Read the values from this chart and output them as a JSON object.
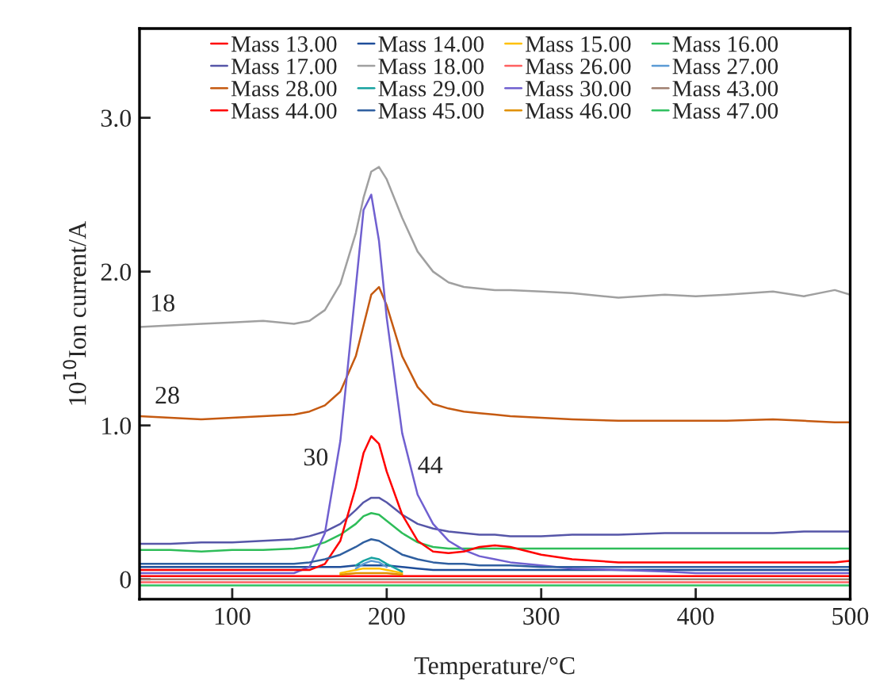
{
  "chart_data": {
    "type": "line",
    "xlabel": "Temperature/°C",
    "ylabel": "10$^{10}$Ion current/A",
    "xlim": [
      40,
      500
    ],
    "ylim": [
      -0.13,
      3.58
    ],
    "xticks": [
      100,
      200,
      300,
      400,
      500
    ],
    "yticks": [
      0,
      {
        "value": 1,
        "label": "1.0"
      },
      {
        "value": 2,
        "label": "2.0"
      },
      {
        "value": 3,
        "label": "3.0"
      }
    ],
    "grid": false,
    "legend": "top",
    "marker": "none",
    "line_style": "solid",
    "annotations": [
      {
        "text": "18",
        "x": 55,
        "y": 1.65
      },
      {
        "text": "28",
        "x": 58,
        "y": 1.05
      },
      {
        "text": "30",
        "x": 168,
        "y": 0.78
      },
      {
        "text": "44",
        "x": 200,
        "y": 0.7
      }
    ],
    "x": [
      40,
      60,
      80,
      100,
      120,
      140,
      150,
      160,
      170,
      180,
      185,
      190,
      195,
      200,
      210,
      220,
      230,
      240,
      250,
      260,
      270,
      280,
      300,
      320,
      350,
      380,
      400,
      420,
      450,
      470,
      490,
      500
    ],
    "series": [
      {
        "name": "Mass 13.00",
        "color": "#ff0000",
        "values": [
          0.02,
          0.02,
          0.02,
          0.02,
          0.02,
          0.02,
          0.02,
          0.02,
          0.02,
          0.02,
          0.02,
          0.02,
          0.02,
          0.02,
          0.02,
          0.02,
          0.02,
          0.02,
          0.02,
          0.02,
          0.02,
          0.02,
          0.02,
          0.02,
          0.02,
          0.02,
          0.02,
          0.02,
          0.02,
          0.02,
          0.02,
          0.02
        ]
      },
      {
        "name": "Mass 14.00",
        "color": "#1f4e9a",
        "values": [
          0.08,
          0.08,
          0.08,
          0.08,
          0.08,
          0.08,
          0.08,
          0.08,
          0.08,
          0.09,
          0.09,
          0.09,
          0.09,
          0.09,
          0.08,
          0.07,
          0.06,
          0.06,
          0.06,
          0.06,
          0.06,
          0.06,
          0.06,
          0.06,
          0.06,
          0.06,
          0.06,
          0.06,
          0.06,
          0.06,
          0.06,
          0.06
        ]
      },
      {
        "name": "Mass 15.00",
        "color": "#ffc000",
        "values": [
          null,
          null,
          null,
          null,
          null,
          null,
          null,
          null,
          0.04,
          0.06,
          0.07,
          0.07,
          0.07,
          0.06,
          0.04,
          null,
          null,
          null,
          null,
          null,
          null,
          null,
          null,
          null,
          null,
          null,
          null,
          null,
          null,
          null,
          null,
          null
        ]
      },
      {
        "name": "Mass 16.00",
        "color": "#2ebd59",
        "values": [
          0.19,
          0.19,
          0.18,
          0.19,
          0.19,
          0.2,
          0.21,
          0.24,
          0.29,
          0.36,
          0.41,
          0.43,
          0.42,
          0.38,
          0.3,
          0.24,
          0.21,
          0.2,
          0.2,
          0.2,
          0.2,
          0.2,
          0.2,
          0.2,
          0.2,
          0.2,
          0.2,
          0.2,
          0.2,
          0.2,
          0.2,
          0.2
        ]
      },
      {
        "name": "Mass 17.00",
        "color": "#5656a8",
        "values": [
          0.23,
          0.23,
          0.24,
          0.24,
          0.25,
          0.26,
          0.28,
          0.31,
          0.36,
          0.45,
          0.5,
          0.53,
          0.53,
          0.5,
          0.42,
          0.36,
          0.33,
          0.31,
          0.3,
          0.29,
          0.29,
          0.28,
          0.28,
          0.29,
          0.29,
          0.3,
          0.3,
          0.3,
          0.3,
          0.31,
          0.31,
          0.31
        ]
      },
      {
        "name": "Mass 18.00",
        "color": "#a0a0a0",
        "values": [
          1.64,
          1.65,
          1.66,
          1.67,
          1.68,
          1.66,
          1.68,
          1.75,
          1.92,
          2.25,
          2.48,
          2.65,
          2.68,
          2.6,
          2.35,
          2.13,
          2.0,
          1.93,
          1.9,
          1.89,
          1.88,
          1.88,
          1.87,
          1.86,
          1.83,
          1.85,
          1.84,
          1.85,
          1.87,
          1.84,
          1.88,
          1.85
        ]
      },
      {
        "name": "Mass 26.00",
        "color": "#ff6060",
        "values": [
          -0.02,
          -0.02,
          -0.02,
          -0.02,
          -0.02,
          -0.02,
          -0.02,
          -0.02,
          -0.02,
          -0.02,
          -0.02,
          -0.02,
          -0.02,
          -0.02,
          -0.02,
          -0.02,
          -0.02,
          -0.02,
          -0.02,
          -0.02,
          -0.02,
          -0.02,
          -0.02,
          -0.02,
          -0.02,
          -0.02,
          -0.02,
          -0.02,
          -0.02,
          -0.02,
          -0.02,
          -0.02
        ]
      },
      {
        "name": "Mass 27.00",
        "color": "#5b9bd5",
        "values": [
          null,
          null,
          null,
          null,
          null,
          null,
          null,
          null,
          null,
          0.07,
          0.1,
          0.12,
          0.11,
          0.08,
          null,
          null,
          null,
          null,
          null,
          null,
          null,
          null,
          null,
          null,
          null,
          null,
          null,
          null,
          null,
          null,
          null,
          null
        ]
      },
      {
        "name": "Mass 28.00",
        "color": "#c55a11",
        "values": [
          1.06,
          1.05,
          1.04,
          1.05,
          1.06,
          1.07,
          1.09,
          1.13,
          1.22,
          1.45,
          1.65,
          1.85,
          1.9,
          1.78,
          1.45,
          1.25,
          1.14,
          1.11,
          1.09,
          1.08,
          1.07,
          1.06,
          1.05,
          1.04,
          1.03,
          1.03,
          1.03,
          1.03,
          1.04,
          1.03,
          1.02,
          1.02
        ]
      },
      {
        "name": "Mass 29.00",
        "color": "#17a2a0",
        "values": [
          null,
          null,
          null,
          null,
          null,
          null,
          null,
          null,
          null,
          0.09,
          0.12,
          0.14,
          0.13,
          0.1,
          0.05,
          null,
          null,
          null,
          null,
          null,
          null,
          null,
          null,
          null,
          null,
          null,
          null,
          null,
          null,
          null,
          null,
          null
        ]
      },
      {
        "name": "Mass 30.00",
        "color": "#7060d0",
        "values": [
          0.04,
          0.04,
          0.04,
          0.04,
          0.04,
          0.04,
          0.08,
          0.3,
          0.9,
          1.9,
          2.4,
          2.5,
          2.2,
          1.7,
          0.95,
          0.55,
          0.36,
          0.25,
          0.19,
          0.15,
          0.13,
          0.11,
          0.09,
          0.07,
          0.06,
          0.05,
          0.04,
          0.04,
          0.04,
          0.04,
          0.04,
          0.04
        ]
      },
      {
        "name": "Mass 43.00",
        "color": "#a08070",
        "values": [
          0,
          0,
          0,
          0,
          0,
          0,
          0,
          0,
          0,
          0,
          0,
          0,
          0,
          0,
          0,
          0,
          0,
          0,
          0,
          0,
          0,
          0,
          0,
          0,
          0,
          0,
          0,
          0,
          0,
          0,
          0,
          0
        ]
      },
      {
        "name": "Mass 44.00",
        "color": "#ff0000",
        "values": [
          0.06,
          0.06,
          0.06,
          0.06,
          0.06,
          0.06,
          0.06,
          0.1,
          0.25,
          0.6,
          0.82,
          0.93,
          0.88,
          0.7,
          0.42,
          0.25,
          0.18,
          0.17,
          0.18,
          0.21,
          0.22,
          0.21,
          0.16,
          0.13,
          0.11,
          0.11,
          0.11,
          0.11,
          0.11,
          0.11,
          0.11,
          0.12
        ]
      },
      {
        "name": "Mass 45.00",
        "color": "#2f5fa0",
        "values": [
          0.1,
          0.1,
          0.1,
          0.1,
          0.1,
          0.1,
          0.11,
          0.13,
          0.16,
          0.21,
          0.24,
          0.26,
          0.25,
          0.22,
          0.16,
          0.13,
          0.11,
          0.1,
          0.1,
          0.09,
          0.09,
          0.09,
          0.08,
          0.08,
          0.08,
          0.08,
          0.08,
          0.08,
          0.08,
          0.08,
          0.08,
          0.08
        ]
      },
      {
        "name": "Mass 46.00",
        "color": "#e09000",
        "values": [
          null,
          null,
          null,
          null,
          null,
          null,
          null,
          null,
          0.03,
          0.04,
          0.04,
          0.04,
          0.04,
          0.04,
          0.03,
          null,
          null,
          null,
          null,
          null,
          null,
          null,
          null,
          null,
          null,
          null,
          null,
          null,
          null,
          null,
          null,
          null
        ]
      },
      {
        "name": "Mass 47.00",
        "color": "#30c060",
        "values": [
          -0.04,
          -0.04,
          -0.04,
          -0.04,
          -0.04,
          -0.04,
          -0.04,
          -0.04,
          -0.04,
          -0.04,
          -0.04,
          -0.04,
          -0.04,
          -0.04,
          -0.04,
          -0.04,
          -0.04,
          -0.04,
          -0.04,
          -0.04,
          -0.04,
          -0.04,
          -0.04,
          -0.04,
          -0.04,
          -0.04,
          -0.04,
          -0.04,
          -0.04,
          -0.04,
          -0.04,
          -0.04
        ]
      }
    ]
  }
}
